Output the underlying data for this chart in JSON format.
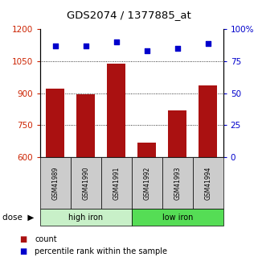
{
  "title": "GDS2074 / 1377885_at",
  "samples": [
    "GSM41989",
    "GSM41990",
    "GSM41991",
    "GSM41992",
    "GSM41993",
    "GSM41994"
  ],
  "bar_values": [
    920,
    893,
    1040,
    668,
    820,
    935
  ],
  "scatter_values": [
    87,
    87,
    90,
    83,
    85,
    89
  ],
  "groups": [
    {
      "label": "high iron",
      "samples": [
        0,
        1,
        2
      ],
      "color": "#c8f0c8"
    },
    {
      "label": "low iron",
      "samples": [
        3,
        4,
        5
      ],
      "color": "#55dd55"
    }
  ],
  "bar_color": "#aa1111",
  "scatter_color": "#0000cc",
  "ylim_left": [
    600,
    1200
  ],
  "ylim_right": [
    0,
    100
  ],
  "yticks_left": [
    600,
    750,
    900,
    1050,
    1200
  ],
  "yticks_right": [
    0,
    25,
    50,
    75,
    100
  ],
  "ytick_labels_right": [
    "0",
    "25",
    "50",
    "75",
    "100%"
  ],
  "ylabel_left_color": "#cc2200",
  "ylabel_right_color": "#0000cc",
  "legend_count": "count",
  "legend_pct": "percentile rank within the sample",
  "header_row_color": "#cccccc"
}
